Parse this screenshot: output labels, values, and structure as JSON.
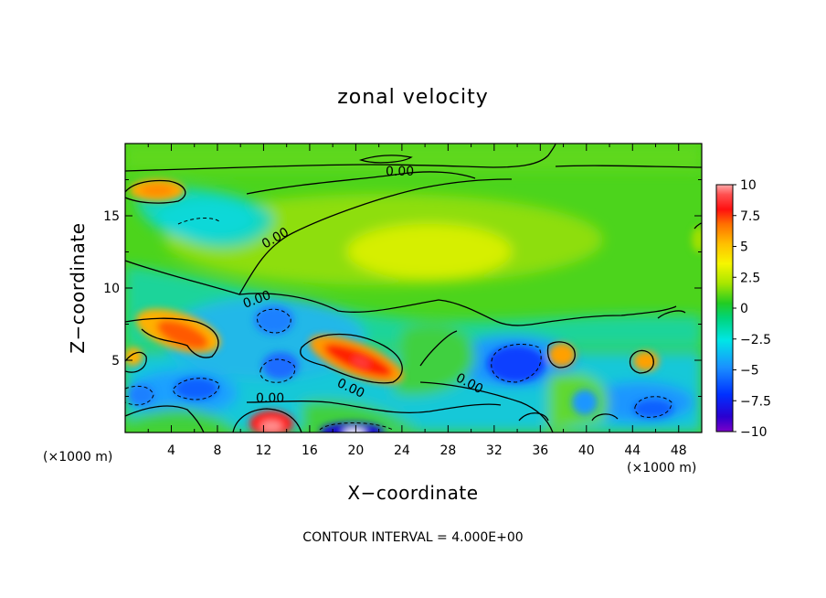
{
  "chart_data": {
    "type": "heatmap",
    "title": "zonal velocity",
    "xlabel": "X−coordinate",
    "ylabel": "Z−coordinate",
    "x_unit_left": "(×1000 m)",
    "x_unit_right": "(×1000 m)",
    "xlim": [
      0,
      50
    ],
    "ylim": [
      0,
      20
    ],
    "x_ticks": [
      4,
      8,
      12,
      16,
      20,
      24,
      28,
      32,
      36,
      40,
      44,
      48
    ],
    "x_tick_labels": [
      "4",
      "8",
      "12",
      "16",
      "20",
      "24",
      "28",
      "32",
      "36",
      "40",
      "44",
      "48"
    ],
    "y_ticks": [
      5,
      10,
      15
    ],
    "y_tick_labels": [
      "5",
      "10",
      "15"
    ],
    "colorbar": {
      "range": [
        -10,
        10
      ],
      "ticks": [
        10,
        7.5,
        5,
        2.5,
        0,
        -2.5,
        -5,
        -7.5,
        -10
      ],
      "tick_labels": [
        "10",
        "7.5",
        "5",
        "2.5",
        "0",
        "−2.5",
        "−5",
        "−7.5",
        "−10"
      ]
    },
    "contour_labels": [
      "0.00",
      "0.00",
      "0.00",
      "0.00",
      "0.00",
      "0.00"
    ],
    "footer": "CONTOUR INTERVAL = 4.000E+00",
    "features": [
      {
        "kind": "positive",
        "x": 3,
        "z": 17.2,
        "value": 4.5
      },
      {
        "kind": "negative",
        "x": 8,
        "z": 14.3,
        "value": -2.0
      },
      {
        "kind": "positive",
        "x": 26,
        "z": 12.5,
        "value": 3.0
      },
      {
        "kind": "positive",
        "x": 6,
        "z": 6.8,
        "value": 6.5
      },
      {
        "kind": "negative",
        "x": 13,
        "z": 7.5,
        "value": -3.0
      },
      {
        "kind": "positive",
        "x": 20,
        "z": 5.0,
        "value": 8.5
      },
      {
        "kind": "negative",
        "x": 14,
        "z": 4.8,
        "value": -3.5
      },
      {
        "kind": "negative",
        "x": 34,
        "z": 4.8,
        "value": -6.0
      },
      {
        "kind": "positive",
        "x": 38.5,
        "z": 5.2,
        "value": 5.0
      },
      {
        "kind": "positive",
        "x": 45,
        "z": 5.0,
        "value": 5.0
      },
      {
        "kind": "negative",
        "x": 6,
        "z": 2.8,
        "value": -4.5
      },
      {
        "kind": "negative",
        "x": 45,
        "z": 1.8,
        "value": -5.0
      },
      {
        "kind": "positive",
        "x": 13.5,
        "z": 0.5,
        "value": 9.0
      },
      {
        "kind": "negative",
        "x": 20,
        "z": 0.2,
        "value": -9.0
      },
      {
        "kind": "negative",
        "x": 1,
        "z": 2.5,
        "value": -3.5
      }
    ]
  }
}
